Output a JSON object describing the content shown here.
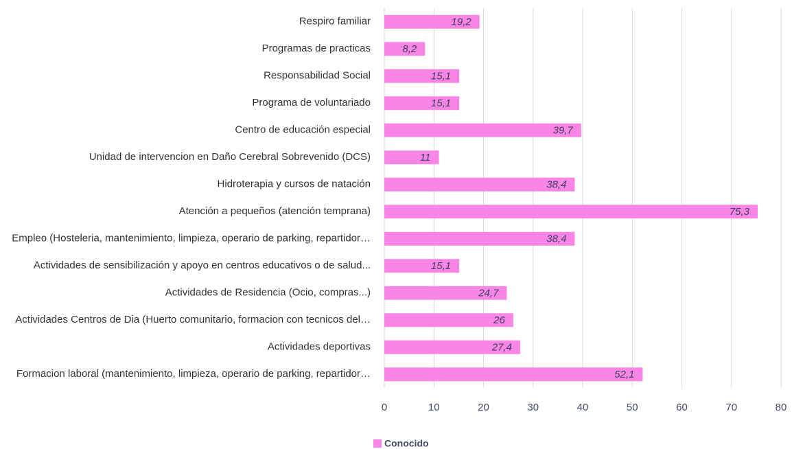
{
  "chart_data": {
    "type": "bar",
    "orientation": "horizontal",
    "categories": [
      "Respiro familiar",
      "Programas de practicas",
      "Responsabilidad Social",
      "Programa de voluntariado",
      "Centro de educación especial",
      "Unidad de intervencion en  Daño Cerebral Sobrevenido (DCS)",
      "Hidroterapia y cursos de natación",
      "Atención a pequeños (atención temprana)",
      "Empleo (Hosteleria, mantenimiento, limpieza, operario de parking, repartidor…",
      "Actividades de sensibilización y apoyo en  centros educativos o de salud...",
      "Actividades de Residencia (Ocio, compras...)",
      "Actividades Centros de Dia (Huerto comunitario, formacion con tecnicos del…",
      "Actividades deportivas",
      "Formacion laboral (mantenimiento, limpieza, operario de parking, repartidor…"
    ],
    "series": [
      {
        "name": "Conocido",
        "color": "#f986e6",
        "values": [
          19.2,
          8.2,
          15.1,
          15.1,
          39.7,
          11,
          38.4,
          75.3,
          38.4,
          15.1,
          24.7,
          26,
          27.4,
          52.1
        ],
        "value_labels": [
          "19,2",
          "8,2",
          "15,1",
          "15,1",
          "39,7",
          "11",
          "38,4",
          "75,3",
          "38,4",
          "15,1",
          "24,7",
          "26",
          "27,4",
          "52,1"
        ]
      }
    ],
    "xlim": [
      0,
      80
    ],
    "xticks": [
      0,
      10,
      20,
      30,
      40,
      50,
      60,
      70,
      80
    ],
    "grid": true,
    "legend": "bottom"
  }
}
